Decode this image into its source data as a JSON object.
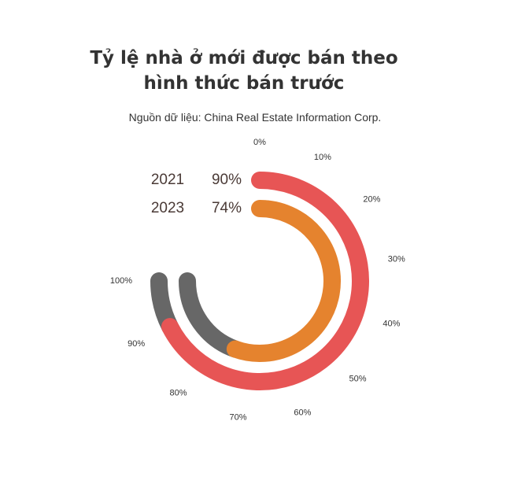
{
  "title_line1": "Tỷ lệ nhà ở mới được bán theo",
  "title_line2": "hình thức bán trước",
  "subtitle": "Nguồn dữ liệu: China Real Estate Information Corp.",
  "chart_data": {
    "type": "radial-bar",
    "title": "Tỷ lệ nhà ở mới được bán theo hình thức bán trước",
    "subtitle": "Nguồn dữ liệu: China Real Estate Information Corp.",
    "axis_range": [
      0,
      100
    ],
    "ticks": [
      "0%",
      "10%",
      "20%",
      "30%",
      "40%",
      "50%",
      "60%",
      "70%",
      "80%",
      "90%",
      "100%"
    ],
    "series": [
      {
        "name": "2021",
        "value": 90,
        "label": "90%",
        "color": "#e75555"
      },
      {
        "name": "2023",
        "value": 74,
        "label": "74%",
        "color": "#e5832e"
      }
    ],
    "remainder_color": "#676767"
  }
}
